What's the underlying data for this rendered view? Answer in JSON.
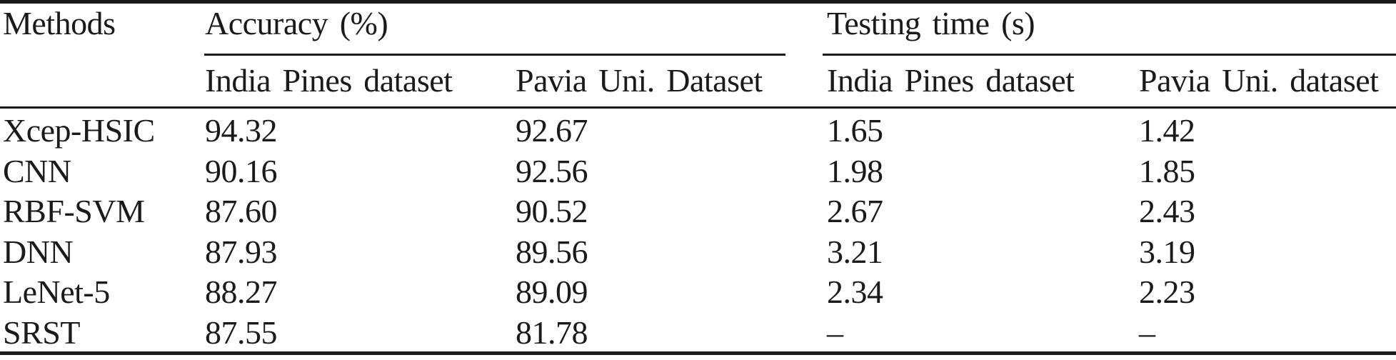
{
  "page": {
    "background": "#ffffff",
    "text_color": "#1a1a1a",
    "rule_color": "#1a1a1a"
  },
  "table": {
    "methods_header": "Methods",
    "groups": [
      {
        "label": "Accuracy (%)",
        "subcolumns": [
          "India Pines dataset",
          "Pavia Uni. Dataset"
        ]
      },
      {
        "label": "Testing time (s)",
        "subcolumns": [
          "India Pines dataset",
          "Pavia Uni. dataset"
        ]
      }
    ],
    "rows": [
      {
        "method": "Xcep-HSIC",
        "accuracy_india_pines": "94.32",
        "accuracy_pavia_uni": "92.67",
        "time_india_pines": "1.65",
        "time_pavia_uni": "1.42"
      },
      {
        "method": "CNN",
        "accuracy_india_pines": "90.16",
        "accuracy_pavia_uni": "92.56",
        "time_india_pines": "1.98",
        "time_pavia_uni": "1.85"
      },
      {
        "method": "RBF-SVM",
        "accuracy_india_pines": "87.60",
        "accuracy_pavia_uni": "90.52",
        "time_india_pines": "2.67",
        "time_pavia_uni": "2.43"
      },
      {
        "method": "DNN",
        "accuracy_india_pines": "87.93",
        "accuracy_pavia_uni": "89.56",
        "time_india_pines": "3.21",
        "time_pavia_uni": "3.19"
      },
      {
        "method": "LeNet-5",
        "accuracy_india_pines": "88.27",
        "accuracy_pavia_uni": "89.09",
        "time_india_pines": "2.34",
        "time_pavia_uni": "2.23"
      },
      {
        "method": "SRST",
        "accuracy_india_pines": "87.55",
        "accuracy_pavia_uni": "81.78",
        "time_india_pines": "–",
        "time_pavia_uni": "–"
      }
    ]
  },
  "chart_data": {
    "type": "table",
    "columns": [
      "Methods",
      "Accuracy (%) - India Pines dataset",
      "Accuracy (%) - Pavia Uni. Dataset",
      "Testing time (s) - India Pines dataset",
      "Testing time (s) - Pavia Uni. dataset"
    ],
    "rows": [
      [
        "Xcep-HSIC",
        94.32,
        92.67,
        1.65,
        1.42
      ],
      [
        "CNN",
        90.16,
        92.56,
        1.98,
        1.85
      ],
      [
        "RBF-SVM",
        87.6,
        90.52,
        2.67,
        2.43
      ],
      [
        "DNN",
        87.93,
        89.56,
        3.21,
        3.19
      ],
      [
        "LeNet-5",
        88.27,
        89.09,
        2.34,
        2.23
      ],
      [
        "SRST",
        87.55,
        81.78,
        null,
        null
      ]
    ]
  }
}
